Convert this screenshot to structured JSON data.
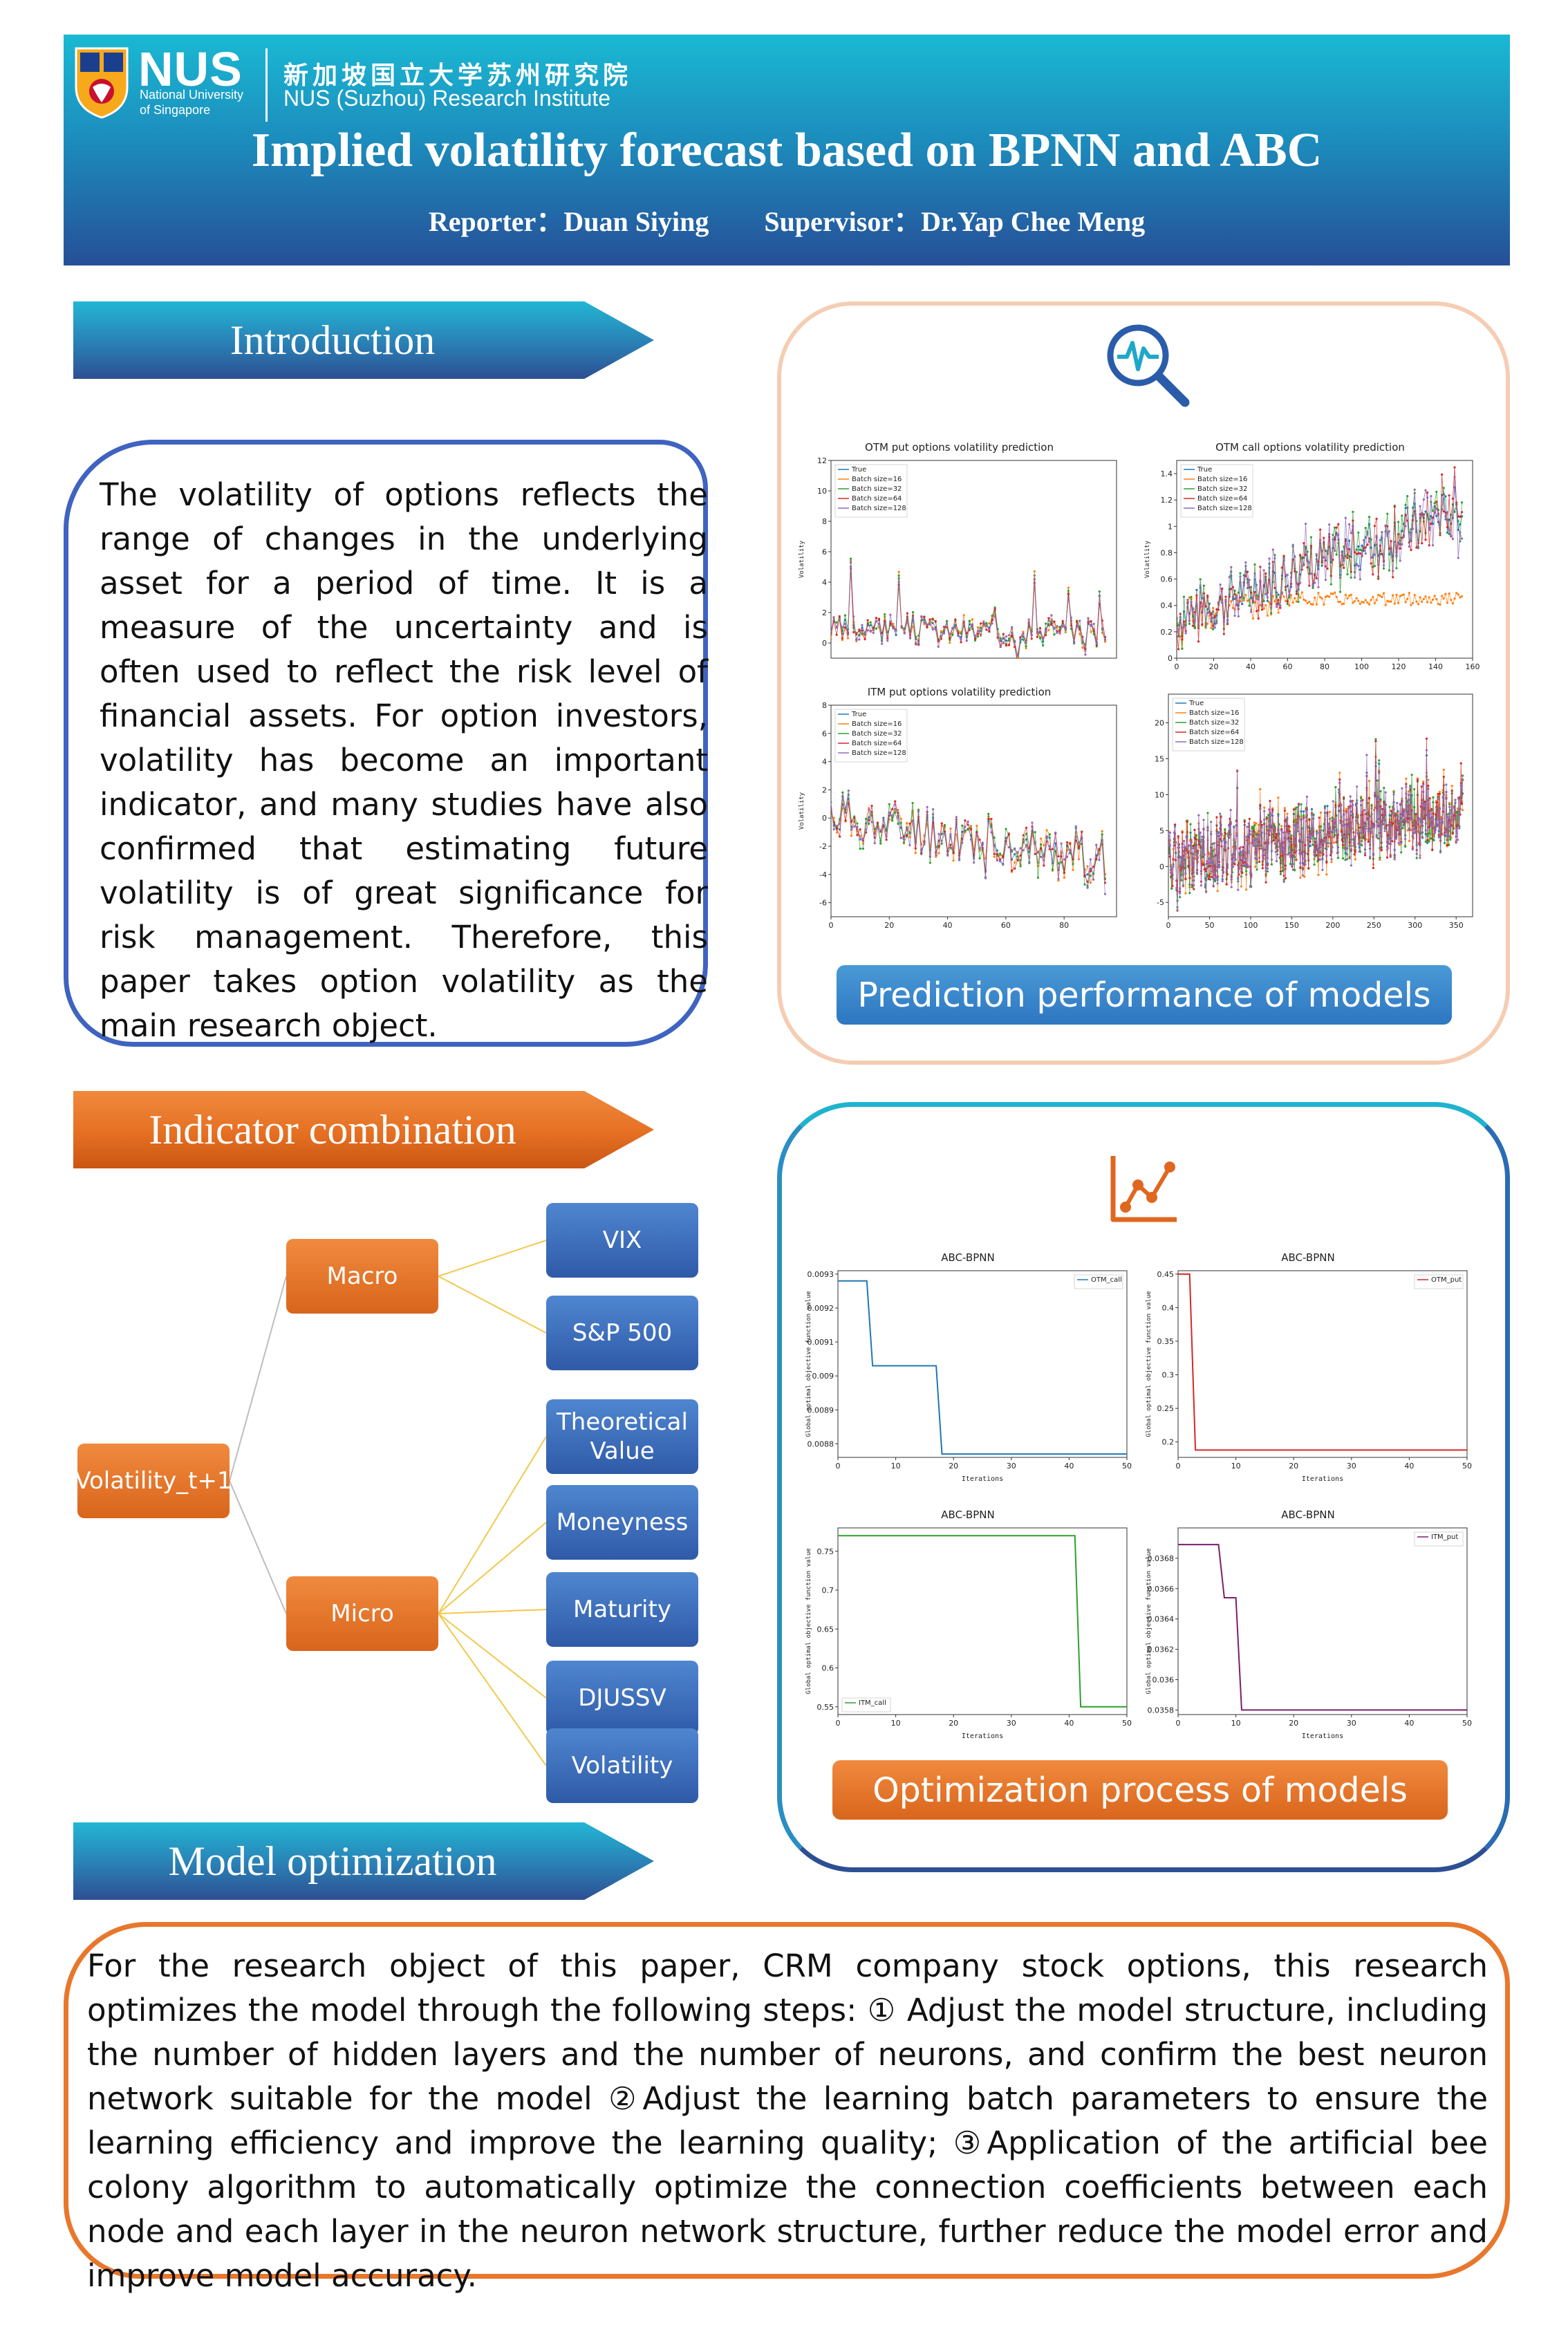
{
  "header": {
    "logo_text": "NUS",
    "logo_sub_1": "National University",
    "logo_sub_2": "of Singapore",
    "institute_cn": "新加坡国立大学苏州研究院",
    "institute_en": "NUS (Suzhou) Research Institute",
    "title": "Implied volatility forecast based on BPNN and ABC",
    "authors": "Reporter：Duan Siying        Supervisor：Dr.Yap Chee Meng"
  },
  "sections": {
    "introduction": "Introduction",
    "indicator": "Indicator combination",
    "model": "Model optimization"
  },
  "intro_text": "The volatility of options reflects the range of changes in the underlying asset for a period of time. It is a measure of the uncertainty and is often used to reflect the risk level of financial assets. For option investors, volatility has become an important indicator, and many studies have also confirmed that estimating future volatility is of great significance for risk management. Therefore, this paper takes option volatility as the main research object.",
  "prediction_caption": "Prediction performance of models",
  "optimization_caption": "Optimization process of models",
  "tree": {
    "root": "Volatility_t+1",
    "macro": "Macro",
    "micro": "Micro",
    "macro_children": [
      "VIX",
      "S&P 500"
    ],
    "micro_children": [
      "Theoretical Value",
      "Moneyness",
      "Maturity",
      "DJUSSV",
      "Volatility"
    ]
  },
  "model_text": "For the research object of this paper, CRM company stock options, this research optimizes the model through the following steps: ① Adjust the model structure, including the number of hidden layers and the number of neurons, and confirm the best neuron network suitable for the model ②Adjust the learning batch parameters to ensure the learning efficiency and improve the learning quality; ③Application of the artificial bee colony algorithm to automatically optimize the connection coefficients between each node and each layer in the neuron network structure, further reduce the model error and improve model accuracy.",
  "colors": {
    "true": "#1f77b4",
    "b16": "#ff7f0e",
    "b32": "#2ca02c",
    "b64": "#d62728",
    "b128": "#9467bd"
  },
  "chart_data": [
    {
      "type": "line",
      "title": "OTM put options volatility prediction",
      "ylabel": "Volatility",
      "xlim": [
        0,
        98
      ],
      "ylim": [
        -1,
        12
      ],
      "xticks": [],
      "yticks": [
        0,
        2,
        4,
        6,
        8,
        10,
        12
      ],
      "legend": [
        "True",
        "Batch size=16",
        "Batch size=32",
        "Batch size=64",
        "Batch size=128"
      ],
      "legend_position": "upper-left",
      "n": 98,
      "start": 0.8,
      "end": 0.8,
      "noise": 0.8,
      "spikes": 1.0,
      "seed": 3
    },
    {
      "type": "line",
      "title": "OTM call options volatility prediction",
      "ylabel": "Volatility",
      "xlim": [
        0,
        160
      ],
      "ylim": [
        0,
        1.5
      ],
      "xticks": [
        0,
        20,
        40,
        60,
        80,
        100,
        120,
        140,
        160
      ],
      "yticks": [
        0.0,
        0.2,
        0.4,
        0.6,
        0.8,
        1.0,
        1.2,
        1.4
      ],
      "legend": [
        "True",
        "Batch size=16",
        "Batch size=32",
        "Batch size=64",
        "Batch size=128"
      ],
      "legend_position": "upper-left",
      "n": 158,
      "start": 0.3,
      "end": 1.15,
      "noise": 0.18,
      "spikes": 0.1,
      "seed": 7
    },
    {
      "type": "line",
      "title": "ITM put options volatility prediction",
      "ylabel": "Volatility",
      "xlim": [
        0,
        98
      ],
      "ylim": [
        -7,
        8
      ],
      "xticks": [
        0,
        20,
        40,
        60,
        80
      ],
      "yticks": [
        -6,
        -4,
        -2,
        0,
        2,
        4,
        6,
        8
      ],
      "legend": [
        "True",
        "Batch size=16",
        "Batch size=32",
        "Batch size=64",
        "Batch size=128"
      ],
      "legend_position": "upper-left",
      "n": 95,
      "start": 0.2,
      "end": -3.0,
      "noise": 1.5,
      "spikes": 0.8,
      "seed": 11
    },
    {
      "type": "line",
      "title": "",
      "ylabel": "",
      "xlim": [
        0,
        370
      ],
      "ylim": [
        -7,
        24
      ],
      "xticks": [
        0,
        50,
        100,
        150,
        200,
        250,
        300,
        350
      ],
      "yticks": [
        -5,
        0,
        5,
        10,
        15,
        20
      ],
      "legend": [
        "True",
        "Batch size=16",
        "Batch size=32",
        "Batch size=64",
        "Batch size=128"
      ],
      "legend_position": "upper-left",
      "n": 360,
      "start": 0.5,
      "end": 8.0,
      "noise": 4.0,
      "spikes": 0.4,
      "seed": 19
    },
    {
      "type": "line",
      "title": "ABC-BPNN",
      "xlabel": "Iterations",
      "ylabel": "Global optimal objective function value",
      "xlim": [
        0,
        50
      ],
      "ylim": [
        0.00876,
        0.00931
      ],
      "xticks": [
        0,
        10,
        20,
        30,
        40,
        50
      ],
      "yticks": [
        0.0088,
        0.0089,
        0.009,
        0.0091,
        0.0092,
        0.0093
      ],
      "legend": [
        "OTM_call"
      ],
      "legend_position": "upper-right",
      "color": "#1f77b4",
      "x": [
        0,
        5,
        6,
        17,
        18,
        50
      ],
      "y": [
        0.00928,
        0.00928,
        0.00903,
        0.00903,
        0.00877,
        0.00877
      ]
    },
    {
      "type": "line",
      "title": "ABC-BPNN",
      "xlabel": "Iterations",
      "ylabel": "Global optimal objective function value",
      "xlim": [
        0,
        50
      ],
      "ylim": [
        0.177,
        0.455
      ],
      "xticks": [
        0,
        10,
        20,
        30,
        40,
        50
      ],
      "yticks": [
        0.2,
        0.25,
        0.3,
        0.35,
        0.4,
        0.45
      ],
      "legend": [
        "OTM_put"
      ],
      "legend_position": "upper-right",
      "color": "#d62728",
      "x": [
        0,
        2,
        3,
        50
      ],
      "y": [
        0.45,
        0.45,
        0.188,
        0.188
      ]
    },
    {
      "type": "line",
      "title": "ABC-BPNN",
      "xlabel": "Iterations",
      "ylabel": "Global optimal objective function value",
      "xlim": [
        0,
        50
      ],
      "ylim": [
        0.54,
        0.78
      ],
      "xticks": [
        0,
        10,
        20,
        30,
        40,
        50
      ],
      "yticks": [
        0.55,
        0.6,
        0.65,
        0.7,
        0.75
      ],
      "legend": [
        "ITM_call"
      ],
      "legend_position": "lower-left",
      "color": "#2ca02c",
      "x": [
        0,
        41,
        42,
        50
      ],
      "y": [
        0.77,
        0.77,
        0.55,
        0.55
      ]
    },
    {
      "type": "line",
      "title": "ABC-BPNN",
      "xlabel": "Iterations",
      "ylabel": "Global optimal objective function value",
      "xlim": [
        0,
        50
      ],
      "ylim": [
        0.03577,
        0.037
      ],
      "xticks": [
        0,
        10,
        20,
        30,
        40,
        50
      ],
      "yticks": [
        0.0358,
        0.036,
        0.0362,
        0.0364,
        0.0366,
        0.0368
      ],
      "legend": [
        "ITM_put"
      ],
      "legend_position": "upper-right",
      "color": "#7b1e6b",
      "x": [
        0,
        7,
        8,
        10,
        11,
        50
      ],
      "y": [
        0.03689,
        0.03689,
        0.03654,
        0.03654,
        0.0358,
        0.0358
      ]
    }
  ]
}
